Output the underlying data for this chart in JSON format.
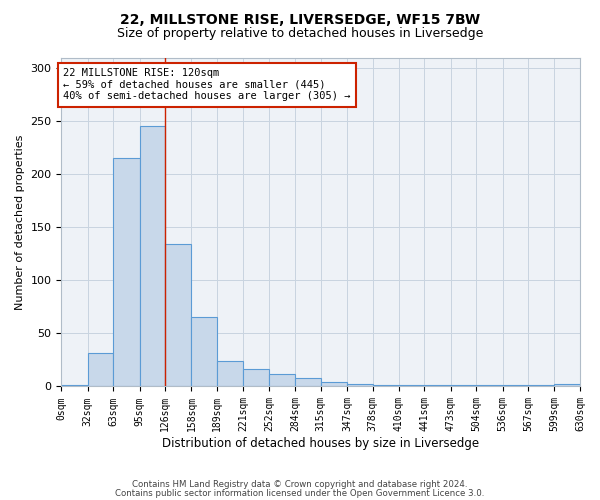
{
  "title1": "22, MILLSTONE RISE, LIVERSEDGE, WF15 7BW",
  "title2": "Size of property relative to detached houses in Liversedge",
  "xlabel": "Distribution of detached houses by size in Liversedge",
  "ylabel": "Number of detached properties",
  "annotation_line1": "22 MILLSTONE RISE: 120sqm",
  "annotation_line2": "← 59% of detached houses are smaller (445)",
  "annotation_line3": "40% of semi-detached houses are larger (305) →",
  "bin_edges": [
    0,
    32,
    63,
    95,
    126,
    158,
    189,
    221,
    252,
    284,
    315,
    347,
    378,
    410,
    441,
    473,
    504,
    536,
    567,
    599,
    630
  ],
  "bar_heights": [
    1,
    32,
    215,
    245,
    134,
    65,
    24,
    16,
    12,
    8,
    4,
    2,
    1,
    1,
    1,
    1,
    1,
    1,
    1,
    2
  ],
  "bar_color": "#c8d8ea",
  "bar_edge_color": "#5b9bd5",
  "grid_color": "#c8d4e0",
  "red_line_x": 126,
  "red_line_color": "#cc2200",
  "annotation_box_color": "#ffffff",
  "annotation_box_edge": "#cc2200",
  "ylim": [
    0,
    310
  ],
  "xlim": [
    0,
    630
  ],
  "tick_labels": [
    "0sqm",
    "32sqm",
    "63sqm",
    "95sqm",
    "126sqm",
    "158sqm",
    "189sqm",
    "221sqm",
    "252sqm",
    "284sqm",
    "315sqm",
    "347sqm",
    "378sqm",
    "410sqm",
    "441sqm",
    "473sqm",
    "504sqm",
    "536sqm",
    "567sqm",
    "599sqm",
    "630sqm"
  ],
  "yticks": [
    0,
    50,
    100,
    150,
    200,
    250,
    300
  ],
  "footer1": "Contains HM Land Registry data © Crown copyright and database right 2024.",
  "footer2": "Contains public sector information licensed under the Open Government Licence 3.0.",
  "fig_facecolor": "#ffffff",
  "axes_facecolor": "#eef2f7"
}
